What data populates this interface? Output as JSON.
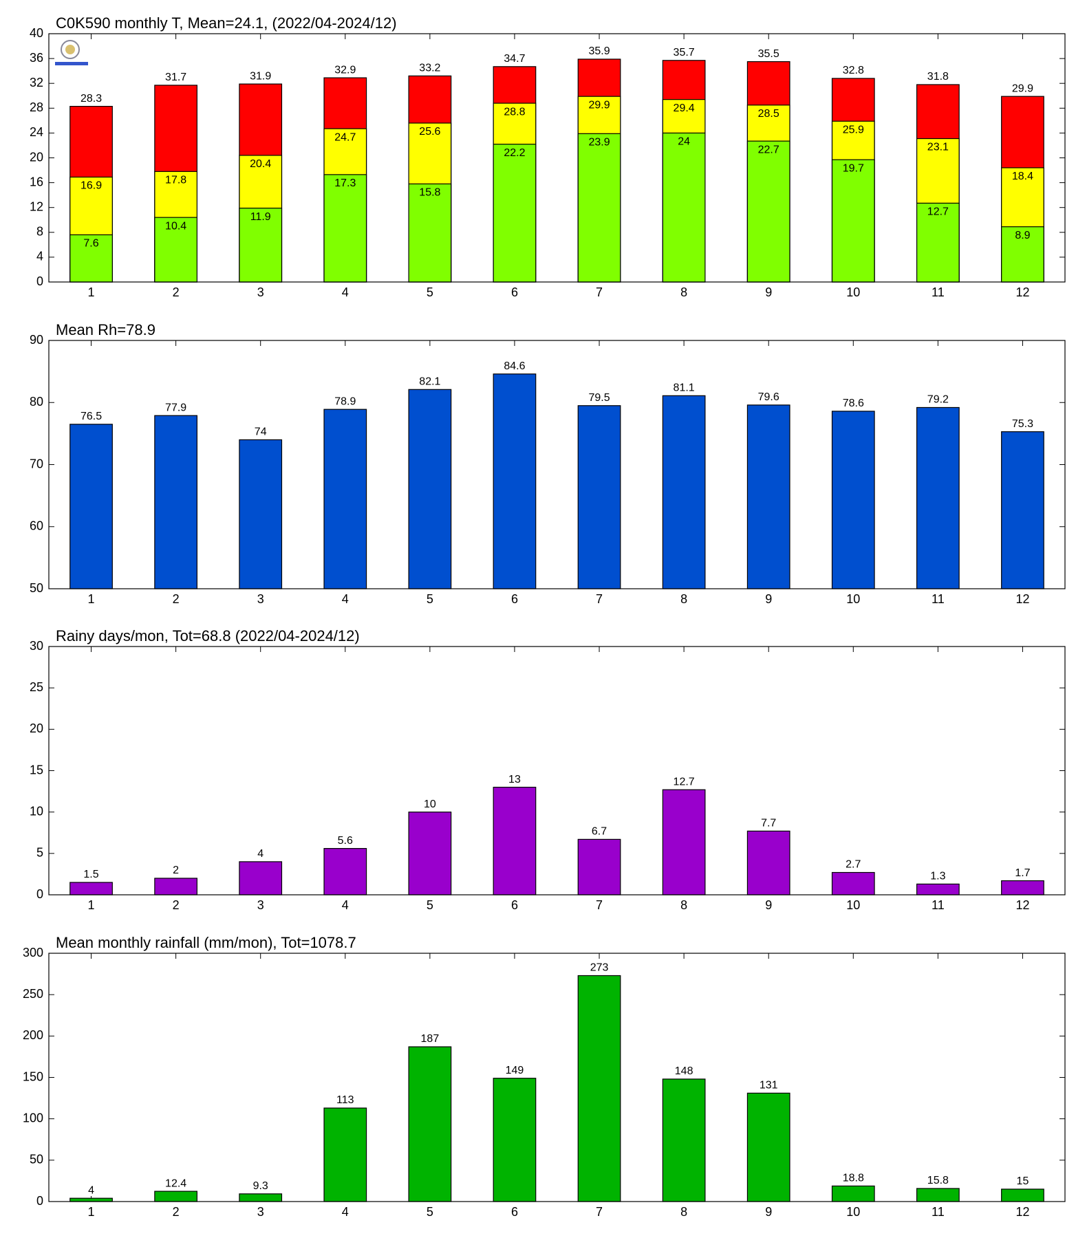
{
  "chart_data": [
    {
      "type": "bar",
      "title": "C0K590 monthly T, Mean=24.1, (2022/04-2024/12)",
      "categories": [
        "1",
        "2",
        "3",
        "4",
        "5",
        "6",
        "7",
        "8",
        "9",
        "10",
        "11",
        "12"
      ],
      "series": [
        {
          "color": "#ff0000",
          "values": [
            28.3,
            31.7,
            31.9,
            32.9,
            33.2,
            34.7,
            35.9,
            35.7,
            35.5,
            32.8,
            31.8,
            29.9
          ]
        },
        {
          "color": "#ffff00",
          "values": [
            16.9,
            17.8,
            20.4,
            24.7,
            25.6,
            28.8,
            29.9,
            29.4,
            28.5,
            25.9,
            23.1,
            18.4
          ]
        },
        {
          "color": "#80ff00",
          "values": [
            7.6,
            10.4,
            11.9,
            17.3,
            15.8,
            22.2,
            23.9,
            24,
            22.7,
            19.7,
            12.7,
            8.9
          ]
        }
      ],
      "ylim": [
        0,
        40
      ],
      "yticks": [
        0,
        4,
        8,
        12,
        16,
        20,
        24,
        28,
        32,
        36,
        40
      ]
    },
    {
      "type": "bar",
      "title": "Mean Rh=78.9",
      "categories": [
        "1",
        "2",
        "3",
        "4",
        "5",
        "6",
        "7",
        "8",
        "9",
        "10",
        "11",
        "12"
      ],
      "series": [
        {
          "color": "#004fcf",
          "values": [
            76.5,
            77.9,
            74,
            78.9,
            82.1,
            84.6,
            79.5,
            81.1,
            79.6,
            78.6,
            79.2,
            75.3
          ]
        }
      ],
      "ylim": [
        50,
        90
      ],
      "yticks": [
        50,
        60,
        70,
        80,
        90
      ]
    },
    {
      "type": "bar",
      "title": "Rainy days/mon, Tot=68.8 (2022/04-2024/12)",
      "categories": [
        "1",
        "2",
        "3",
        "4",
        "5",
        "6",
        "7",
        "8",
        "9",
        "10",
        "11",
        "12"
      ],
      "series": [
        {
          "color": "#9900cc",
          "values": [
            1.5,
            2,
            4,
            5.6,
            10,
            13,
            6.7,
            12.7,
            7.7,
            2.7,
            1.3,
            1.7
          ]
        }
      ],
      "ylim": [
        0,
        30
      ],
      "yticks": [
        0,
        5,
        10,
        15,
        20,
        25,
        30
      ]
    },
    {
      "type": "bar",
      "title": "Mean monthly rainfall (mm/mon), Tot=1078.7",
      "categories": [
        "1",
        "2",
        "3",
        "4",
        "5",
        "6",
        "7",
        "8",
        "9",
        "10",
        "11",
        "12"
      ],
      "series": [
        {
          "color": "#00b300",
          "values": [
            4,
            12.4,
            9.3,
            113,
            187,
            149,
            273,
            148,
            131,
            18.8,
            15.8,
            15
          ]
        }
      ],
      "ylim": [
        0,
        300
      ],
      "yticks": [
        0,
        50,
        100,
        150,
        200,
        250,
        300
      ]
    }
  ]
}
